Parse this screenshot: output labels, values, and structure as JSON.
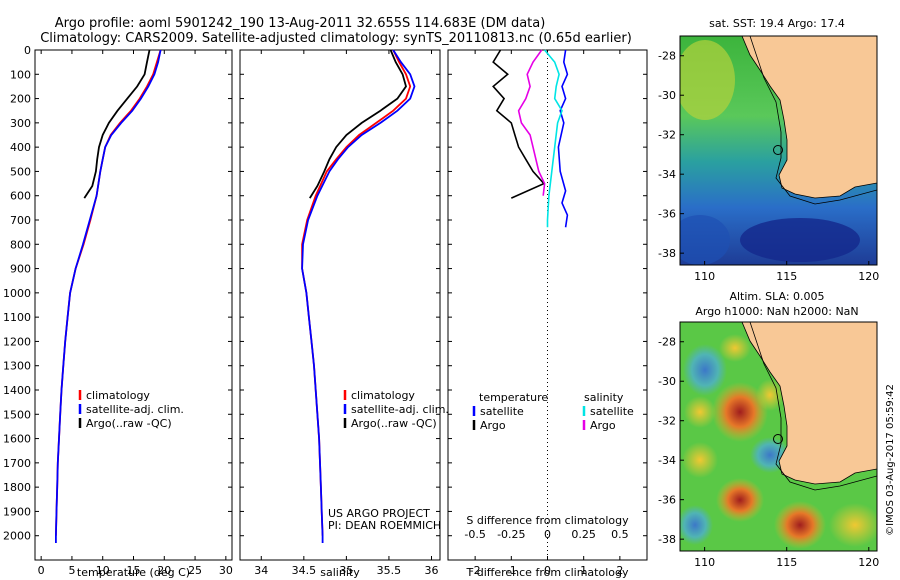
{
  "header": {
    "line1": "Argo profile: aoml 5901242_190 13-Aug-2011 32.655S 114.683E (DM data)",
    "line2": "Climatology: CARS2009. Satellite-adjusted climatology: synTS_20110813.nc (0.65d earlier)"
  },
  "colors": {
    "climatology": "#ff0000",
    "satellite": "#0000ff",
    "argo": "#000000",
    "salinity_satellite": "#00e5e5",
    "salinity_argo": "#e600e6",
    "land": "#f8c896"
  },
  "chart_data": [
    {
      "type": "line",
      "name": "temperature-profile",
      "xlabel": "temperature (deg C)",
      "xlim": [
        -1,
        31
      ],
      "ylim": [
        2100,
        0
      ],
      "xticks": [
        "0",
        "5",
        "10",
        "15",
        "20",
        "25",
        "30"
      ],
      "yticks": [
        "0",
        "100",
        "200",
        "300",
        "400",
        "500",
        "600",
        "700",
        "800",
        "900",
        "1000",
        "1100",
        "1200",
        "1300",
        "1400",
        "1500",
        "1600",
        "1700",
        "1800",
        "1900",
        "2000"
      ],
      "legend": [
        "climatology",
        "satellite-adj. clim.",
        "Argo(..raw -QC)"
      ],
      "series": [
        {
          "name": "climatology",
          "color": "#ff0000",
          "points": [
            [
              19.4,
              0
            ],
            [
              18.8,
              50
            ],
            [
              18.2,
              100
            ],
            [
              17.2,
              150
            ],
            [
              16.0,
              200
            ],
            [
              14.6,
              250
            ],
            [
              12.8,
              300
            ],
            [
              11.3,
              350
            ],
            [
              10.4,
              400
            ],
            [
              10.0,
              450
            ],
            [
              9.6,
              500
            ],
            [
              9.0,
              600
            ],
            [
              8.0,
              700
            ],
            [
              6.9,
              800
            ],
            [
              5.6,
              900
            ],
            [
              4.7,
              1000
            ],
            [
              4.3,
              1100
            ],
            [
              3.9,
              1200
            ],
            [
              3.6,
              1300
            ],
            [
              3.3,
              1400
            ],
            [
              3.1,
              1500
            ],
            [
              2.9,
              1600
            ],
            [
              2.7,
              1700
            ],
            [
              2.6,
              1800
            ],
            [
              2.5,
              1900
            ],
            [
              2.4,
              2000
            ]
          ]
        },
        {
          "name": "satellite-adj. clim.",
          "color": "#0000ff",
          "points": [
            [
              19.4,
              0
            ],
            [
              19.0,
              50
            ],
            [
              18.4,
              100
            ],
            [
              17.4,
              150
            ],
            [
              16.2,
              200
            ],
            [
              14.8,
              250
            ],
            [
              13.0,
              300
            ],
            [
              11.4,
              350
            ],
            [
              10.4,
              400
            ],
            [
              10.0,
              450
            ],
            [
              9.6,
              500
            ],
            [
              9.0,
              600
            ],
            [
              7.9,
              700
            ],
            [
              6.8,
              800
            ],
            [
              5.6,
              900
            ],
            [
              4.7,
              1000
            ],
            [
              4.3,
              1100
            ],
            [
              3.9,
              1200
            ],
            [
              3.6,
              1300
            ],
            [
              3.3,
              1400
            ],
            [
              3.1,
              1500
            ],
            [
              2.9,
              1600
            ],
            [
              2.7,
              1700
            ],
            [
              2.6,
              1800
            ],
            [
              2.5,
              1900
            ],
            [
              2.4,
              2000
            ],
            [
              2.4,
              2030
            ]
          ]
        },
        {
          "name": "Argo(..raw -QC)",
          "color": "#000000",
          "points": [
            [
              17.6,
              0
            ],
            [
              17.2,
              50
            ],
            [
              16.8,
              100
            ],
            [
              15.6,
              150
            ],
            [
              14.0,
              200
            ],
            [
              12.4,
              250
            ],
            [
              11.0,
              300
            ],
            [
              10.0,
              350
            ],
            [
              9.4,
              400
            ],
            [
              9.1,
              450
            ],
            [
              8.9,
              500
            ],
            [
              8.3,
              560
            ],
            [
              7.0,
              610
            ]
          ]
        }
      ]
    },
    {
      "type": "line",
      "name": "salinity-profile",
      "xlabel": "salinity",
      "xlim": [
        33.75,
        36.1
      ],
      "ylim": [
        2100,
        0
      ],
      "xticks": [
        "34",
        "34.5",
        "35",
        "35.5",
        "36"
      ],
      "legend": [
        "climatology",
        "satellite-adj. clim.",
        "Argo(..raw -QC)"
      ],
      "annotation": [
        "US ARGO PROJECT",
        "PI: DEAN ROEMMICH"
      ],
      "series": [
        {
          "name": "climatology",
          "color": "#ff0000",
          "points": [
            [
              35.55,
              0
            ],
            [
              35.62,
              50
            ],
            [
              35.7,
              100
            ],
            [
              35.75,
              150
            ],
            [
              35.7,
              200
            ],
            [
              35.55,
              250
            ],
            [
              35.35,
              300
            ],
            [
              35.15,
              350
            ],
            [
              35.0,
              400
            ],
            [
              34.88,
              450
            ],
            [
              34.77,
              500
            ],
            [
              34.64,
              600
            ],
            [
              34.54,
              700
            ],
            [
              34.48,
              800
            ],
            [
              34.48,
              900
            ],
            [
              34.53,
              1000
            ],
            [
              34.56,
              1100
            ],
            [
              34.59,
              1200
            ],
            [
              34.62,
              1300
            ],
            [
              34.64,
              1400
            ],
            [
              34.66,
              1500
            ],
            [
              34.68,
              1600
            ],
            [
              34.69,
              1700
            ],
            [
              34.7,
              1800
            ],
            [
              34.71,
              1900
            ],
            [
              34.72,
              2000
            ]
          ]
        },
        {
          "name": "satellite-adj. clim.",
          "color": "#0000ff",
          "points": [
            [
              35.55,
              0
            ],
            [
              35.64,
              50
            ],
            [
              35.75,
              100
            ],
            [
              35.8,
              150
            ],
            [
              35.75,
              200
            ],
            [
              35.6,
              250
            ],
            [
              35.4,
              300
            ],
            [
              35.18,
              350
            ],
            [
              35.02,
              400
            ],
            [
              34.9,
              450
            ],
            [
              34.8,
              500
            ],
            [
              34.66,
              600
            ],
            [
              34.55,
              700
            ],
            [
              34.49,
              800
            ],
            [
              34.48,
              900
            ],
            [
              34.53,
              1000
            ],
            [
              34.56,
              1100
            ],
            [
              34.59,
              1200
            ],
            [
              34.62,
              1300
            ],
            [
              34.64,
              1400
            ],
            [
              34.66,
              1500
            ],
            [
              34.68,
              1600
            ],
            [
              34.69,
              1700
            ],
            [
              34.7,
              1800
            ],
            [
              34.71,
              1900
            ],
            [
              34.72,
              2000
            ],
            [
              34.72,
              2030
            ]
          ]
        },
        {
          "name": "Argo(..raw -QC)",
          "color": "#000000",
          "points": [
            [
              35.52,
              0
            ],
            [
              35.58,
              50
            ],
            [
              35.66,
              100
            ],
            [
              35.7,
              150
            ],
            [
              35.6,
              200
            ],
            [
              35.4,
              250
            ],
            [
              35.18,
              300
            ],
            [
              35.0,
              350
            ],
            [
              34.88,
              400
            ],
            [
              34.8,
              450
            ],
            [
              34.74,
              500
            ],
            [
              34.66,
              560
            ],
            [
              34.57,
              610
            ]
          ]
        }
      ]
    },
    {
      "type": "line",
      "name": "difference-profile",
      "xlabel": "T difference from climatology",
      "xlabel2": "S difference from climatology",
      "xlim": [
        -2.75,
        2.75
      ],
      "ylim": [
        2100,
        0
      ],
      "xticks": [
        "-2",
        "-1",
        "0",
        "1",
        "2"
      ],
      "xticks2": [
        "-0.5",
        "-0.25",
        "0",
        "0.25",
        "0.5"
      ],
      "legend_temperature": [
        "temperature",
        "satellite",
        "Argo"
      ],
      "legend_salinity": [
        "salinity",
        "satellite",
        "Argo"
      ],
      "series": [
        {
          "name": "temperature satellite",
          "color": "#0000ff",
          "points": [
            [
              0.5,
              0
            ],
            [
              0.45,
              50
            ],
            [
              0.55,
              100
            ],
            [
              0.4,
              150
            ],
            [
              0.5,
              200
            ],
            [
              0.35,
              250
            ],
            [
              0.45,
              300
            ],
            [
              0.3,
              400
            ],
            [
              0.35,
              500
            ],
            [
              0.5,
              580
            ],
            [
              0.4,
              630
            ],
            [
              0.55,
              680
            ],
            [
              0.5,
              730
            ]
          ]
        },
        {
          "name": "temperature Argo",
          "color": "#000000",
          "points": [
            [
              -1.3,
              0
            ],
            [
              -1.5,
              50
            ],
            [
              -1.1,
              100
            ],
            [
              -1.5,
              150
            ],
            [
              -1.2,
              200
            ],
            [
              -1.4,
              250
            ],
            [
              -1.0,
              300
            ],
            [
              -0.9,
              350
            ],
            [
              -0.8,
              400
            ],
            [
              -0.6,
              450
            ],
            [
              -0.4,
              500
            ],
            [
              -0.1,
              550
            ],
            [
              -1.0,
              610
            ]
          ]
        },
        {
          "name": "salinity satellite",
          "color": "#00e5e5",
          "points": [
            [
              -0.02,
              0
            ],
            [
              0.05,
              50
            ],
            [
              0.08,
              100
            ],
            [
              0.06,
              150
            ],
            [
              0.05,
              200
            ],
            [
              0.1,
              250
            ],
            [
              0.07,
              300
            ],
            [
              0.05,
              400
            ],
            [
              0.03,
              500
            ],
            [
              0.01,
              600
            ],
            [
              0.0,
              700
            ],
            [
              0.0,
              730
            ]
          ]
        },
        {
          "name": "salinity Argo",
          "color": "#e600e6",
          "points": [
            [
              -0.04,
              0
            ],
            [
              -0.1,
              50
            ],
            [
              -0.14,
              100
            ],
            [
              -0.12,
              150
            ],
            [
              -0.15,
              200
            ],
            [
              -0.2,
              250
            ],
            [
              -0.18,
              300
            ],
            [
              -0.12,
              350
            ],
            [
              -0.1,
              400
            ],
            [
              -0.08,
              450
            ],
            [
              -0.06,
              500
            ],
            [
              -0.02,
              550
            ],
            [
              -0.03,
              600
            ]
          ]
        }
      ]
    }
  ],
  "maps": [
    {
      "title": "sat. SST: 19.4 Argo: 17.4",
      "title2": "",
      "xticks": [
        "110",
        "115",
        "120"
      ],
      "yticks": [
        "-28",
        "-30",
        "-32",
        "-34",
        "-36",
        "-38"
      ],
      "float_lon": 114.683,
      "float_lat": -32.655
    },
    {
      "title": "Altim. SLA: 0.005",
      "title2": "Argo h1000: NaN h2000: NaN",
      "xticks": [
        "110",
        "115",
        "120"
      ],
      "yticks": [
        "-28",
        "-30",
        "-32",
        "-34",
        "-36",
        "-38"
      ],
      "float_lon": 114.683,
      "float_lat": -32.655
    }
  ],
  "credit": "©IMOS 03-Aug-2017 05:59:42"
}
